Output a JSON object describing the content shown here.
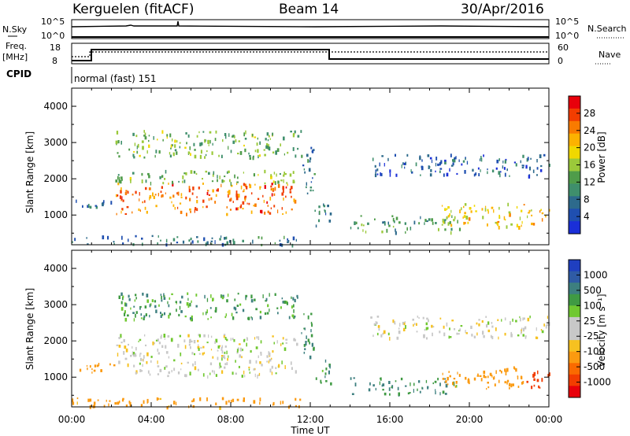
{
  "header": {
    "station": "Kerguelen (fitACF)",
    "beam": "Beam 14",
    "date": "30/Apr/2016"
  },
  "sky_panel": {
    "left_label": "N.Sky",
    "left_ticks": [
      "10^5",
      "10^0"
    ],
    "right_label": "N.Search",
    "right_ticks": [
      "10^5",
      "10^0"
    ]
  },
  "freq_panel": {
    "left_label_line1": "Freq.",
    "left_label_line2": "[MHz]",
    "left_ticks": [
      "18",
      "8"
    ],
    "right_label": "Nave",
    "right_ticks": [
      "60",
      "0"
    ]
  },
  "cpid_panel": {
    "label": "CPID",
    "mode_text": "normal (fast) 151"
  },
  "power_colorbar": {
    "title": "Power [dB]",
    "ticks": [
      "28",
      "24",
      "20",
      "16",
      "12",
      "8",
      "4"
    ],
    "colors": [
      "#e8000b",
      "#f23d00",
      "#f97b00",
      "#fcb200",
      "#f0d800",
      "#9bc93a",
      "#4f9c4a",
      "#3f8f6c",
      "#2d6a8c",
      "#1f4fb0",
      "#1a2fd8"
    ]
  },
  "velocity_colorbar": {
    "title": "Velocity [m s⁻¹]",
    "ticks": [
      "1000",
      "500",
      "100",
      "25",
      "-25",
      "-100",
      "-500",
      "-1000"
    ],
    "colors": [
      "#1f3fc0",
      "#2f5ba5",
      "#3d7f7f",
      "#3f9a43",
      "#70c830",
      "#c8c8c8",
      "#c8c8c8",
      "#f6c120",
      "#fb9a10",
      "#fa6a00",
      "#f23d00",
      "#e8000b"
    ]
  },
  "chart_data": [
    {
      "type": "heatmap",
      "quantity": "Power",
      "unit": "dB",
      "ylabel": "Slant Range [km]",
      "yticks": [
        1000,
        2000,
        3000,
        4000
      ],
      "ylim": [
        180,
        4500
      ],
      "xlim": [
        0,
        24
      ],
      "zlim": [
        0,
        30
      ],
      "regions": [
        {
          "t0": 0.2,
          "t1": 2.1,
          "r0": 1150,
          "r1": 1450,
          "value": 8
        },
        {
          "t0": 2.2,
          "t1": 11.3,
          "r0": 1050,
          "r1": 1900,
          "value": 26
        },
        {
          "t0": 2.0,
          "t1": 11.5,
          "r0": 1900,
          "r1": 2250,
          "value": 14
        },
        {
          "t0": 2.2,
          "t1": 11.5,
          "r0": 2600,
          "r1": 3350,
          "value": 14
        },
        {
          "t0": 11.5,
          "t1": 12.2,
          "r0": 1500,
          "r1": 2900,
          "value": 8
        },
        {
          "t0": 12.2,
          "t1": 13.0,
          "r0": 700,
          "r1": 1500,
          "value": 10
        },
        {
          "t0": 14.0,
          "t1": 19.5,
          "r0": 550,
          "r1": 1000,
          "value": 12
        },
        {
          "t0": 18.5,
          "t1": 22.8,
          "r0": 700,
          "r1": 1350,
          "value": 20
        },
        {
          "t0": 15.0,
          "t1": 24.0,
          "r0": 2100,
          "r1": 2700,
          "value": 6
        },
        {
          "t0": 0.0,
          "t1": 11.5,
          "r0": 200,
          "r1": 450,
          "value": 8
        },
        {
          "t0": 22.8,
          "t1": 24.0,
          "r0": 700,
          "r1": 1200,
          "value": 22
        }
      ]
    },
    {
      "type": "heatmap",
      "quantity": "Velocity",
      "unit": "m s-1",
      "ylabel": "Slant Range [km]",
      "yticks": [
        1000,
        2000,
        3000,
        4000
      ],
      "ylim": [
        180,
        4500
      ],
      "xlim": [
        0,
        24
      ],
      "zlim": [
        -1000,
        1000
      ],
      "regions": [
        {
          "t0": 0.2,
          "t1": 2.1,
          "r0": 1150,
          "r1": 1450,
          "value": -100
        },
        {
          "t0": 2.2,
          "t1": 11.3,
          "r0": 1050,
          "r1": 2200,
          "value": 0
        },
        {
          "t0": 2.2,
          "t1": 11.5,
          "r0": 2600,
          "r1": 3350,
          "value": 80
        },
        {
          "t0": 11.5,
          "t1": 12.2,
          "r0": 1500,
          "r1": 2900,
          "value": 100
        },
        {
          "t0": 12.2,
          "t1": 13.0,
          "r0": 700,
          "r1": 1500,
          "value": 100
        },
        {
          "t0": 14.0,
          "t1": 19.5,
          "r0": 550,
          "r1": 1000,
          "value": 100
        },
        {
          "t0": 18.5,
          "t1": 22.8,
          "r0": 700,
          "r1": 1350,
          "value": -200
        },
        {
          "t0": 15.0,
          "t1": 24.0,
          "r0": 2100,
          "r1": 2700,
          "value": 0
        },
        {
          "t0": 0.0,
          "t1": 11.5,
          "r0": 200,
          "r1": 450,
          "value": -100
        },
        {
          "t0": 22.8,
          "t1": 24.0,
          "r0": 700,
          "r1": 1200,
          "value": -500
        }
      ]
    }
  ],
  "time_axis": {
    "ticks": [
      "00:00",
      "04:00",
      "08:00",
      "12:00",
      "16:00",
      "20:00",
      "00:00"
    ],
    "xlabel": "Time UT"
  }
}
